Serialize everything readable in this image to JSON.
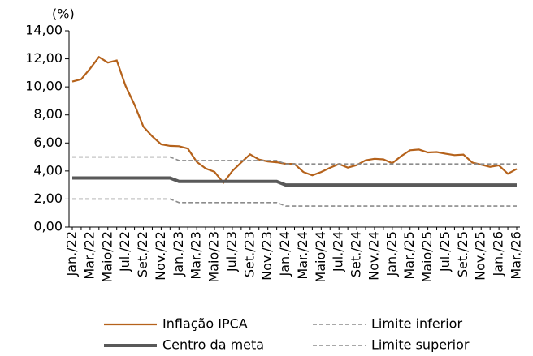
{
  "chart_data": {
    "type": "line",
    "ylabel": "(%)",
    "categories": [
      "Jan./22",
      null,
      "Mar./22",
      null,
      "Maio/22",
      null,
      "Jul./22",
      null,
      "Set./22",
      null,
      "Nov./22",
      null,
      "Jan./23",
      null,
      "Mar./23",
      null,
      "Maio/23",
      null,
      "Jul./23",
      null,
      "Set./23",
      null,
      "Nov./23",
      null,
      "Jan./24",
      null,
      "Mar./24",
      null,
      "Maio/24",
      null,
      "Jul./24",
      null,
      "Set./24",
      null,
      "Nov./24",
      null,
      "Jan./25",
      null,
      "Mar./25",
      null,
      "Maio/25",
      null,
      "Jul./25",
      null,
      "Set./25",
      null,
      "Nov./25",
      null,
      "Jan./26",
      null,
      "Mar./26"
    ],
    "series": [
      {
        "name": "Inflação IPCA",
        "color": "#b5621b",
        "linestyle": "solid",
        "values": [
          10.38,
          10.54,
          11.3,
          12.13,
          11.73,
          11.89,
          10.07,
          8.73,
          7.17,
          6.47,
          5.9,
          5.79,
          5.77,
          5.6,
          4.65,
          4.18,
          3.94,
          3.16,
          3.99,
          4.61,
          5.19,
          4.82,
          4.68,
          4.62,
          4.51,
          4.5,
          3.93,
          3.69,
          3.93,
          4.23,
          4.5,
          4.24,
          4.42,
          4.76,
          4.87,
          4.83,
          4.56,
          5.06,
          5.48,
          5.53,
          5.32,
          5.35,
          5.23,
          5.13,
          5.17,
          4.6,
          4.45,
          4.3,
          4.4,
          3.8,
          4.15
        ]
      },
      {
        "name": "Centro da meta",
        "color": "#595959",
        "linestyle": "thick",
        "values": [
          3.5,
          3.5,
          3.5,
          3.5,
          3.5,
          3.5,
          3.5,
          3.5,
          3.5,
          3.5,
          3.5,
          3.5,
          3.25,
          3.25,
          3.25,
          3.25,
          3.25,
          3.25,
          3.25,
          3.25,
          3.25,
          3.25,
          3.25,
          3.25,
          3,
          3,
          3,
          3,
          3,
          3,
          3,
          3,
          3,
          3,
          3,
          3,
          3,
          3,
          3,
          3,
          3,
          3,
          3,
          3,
          3,
          3,
          3,
          3,
          3,
          3,
          3
        ]
      },
      {
        "name": "Limite inferior",
        "color": "#8c8c8c",
        "linestyle": "dashed",
        "values": [
          2,
          2,
          2,
          2,
          2,
          2,
          2,
          2,
          2,
          2,
          2,
          2,
          1.75,
          1.75,
          1.75,
          1.75,
          1.75,
          1.75,
          1.75,
          1.75,
          1.75,
          1.75,
          1.75,
          1.75,
          1.5,
          1.5,
          1.5,
          1.5,
          1.5,
          1.5,
          1.5,
          1.5,
          1.5,
          1.5,
          1.5,
          1.5,
          1.5,
          1.5,
          1.5,
          1.5,
          1.5,
          1.5,
          1.5,
          1.5,
          1.5,
          1.5,
          1.5,
          1.5,
          1.5,
          1.5,
          1.5
        ]
      },
      {
        "name": "Limite superior",
        "color": "#8c8c8c",
        "linestyle": "dashed",
        "values": [
          5,
          5,
          5,
          5,
          5,
          5,
          5,
          5,
          5,
          5,
          5,
          5,
          4.75,
          4.75,
          4.75,
          4.75,
          4.75,
          4.75,
          4.75,
          4.75,
          4.75,
          4.75,
          4.75,
          4.75,
          4.5,
          4.5,
          4.5,
          4.5,
          4.5,
          4.5,
          4.5,
          4.5,
          4.5,
          4.5,
          4.5,
          4.5,
          4.5,
          4.5,
          4.5,
          4.5,
          4.5,
          4.5,
          4.5,
          4.5,
          4.5,
          4.5,
          4.5,
          4.5,
          4.5,
          4.5,
          4.5
        ]
      }
    ],
    "ylim": [
      0,
      14
    ],
    "yticks": [
      {
        "value": 0,
        "label": "0,00"
      },
      {
        "value": 2,
        "label": "2,00"
      },
      {
        "value": 4,
        "label": "4,00"
      },
      {
        "value": 6,
        "label": "6,00"
      },
      {
        "value": 8,
        "label": "8,00"
      },
      {
        "value": 10,
        "label": "10,00"
      },
      {
        "value": 12,
        "label": "12,00"
      },
      {
        "value": 14,
        "label": "14,00"
      }
    ],
    "grid": false,
    "legend": "bottom"
  }
}
